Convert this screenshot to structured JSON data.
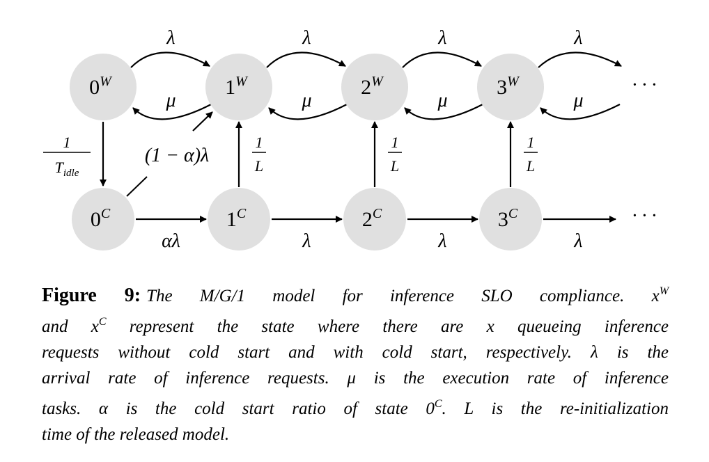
{
  "diagram": {
    "node_fill": "#e0e0e0",
    "top_nodes": [
      {
        "base": "0",
        "sup": "W"
      },
      {
        "base": "1",
        "sup": "W"
      },
      {
        "base": "2",
        "sup": "W"
      },
      {
        "base": "3",
        "sup": "W"
      }
    ],
    "bottom_nodes": [
      {
        "base": "0",
        "sup": "C"
      },
      {
        "base": "1",
        "sup": "C"
      },
      {
        "base": "2",
        "sup": "C"
      },
      {
        "base": "3",
        "sup": "C"
      }
    ],
    "arrival_label": "λ",
    "service_label": "μ",
    "idle_num": "1",
    "idle_den": "T",
    "idle_den_sub": "idle",
    "reinit_num": "1",
    "reinit_den": "L",
    "warm_label": "(1 − α)λ",
    "cold_label": "αλ",
    "ellipsis": "· · ·"
  },
  "caption": {
    "label": "Figure 9:",
    "lines": [
      [
        {
          "t": "The M/G/1 model for inference SLO compliance. "
        },
        {
          "t": "x",
          "m": true
        },
        {
          "t": "W",
          "sup": true
        }
      ],
      [
        {
          "t": "and "
        },
        {
          "t": "x",
          "m": true
        },
        {
          "t": "C",
          "sup": true
        },
        {
          "t": " represent the state where there are "
        },
        {
          "t": "x",
          "m": true
        },
        {
          "t": " queueing inference"
        }
      ],
      [
        {
          "t": "requests without cold start and with cold start, respectively. "
        },
        {
          "t": "λ",
          "m": true
        },
        {
          "t": " is the"
        }
      ],
      [
        {
          "t": "arrival rate of inference requests. "
        },
        {
          "t": "μ",
          "m": true
        },
        {
          "t": " is the execution rate of inference"
        }
      ],
      [
        {
          "t": "tasks. "
        },
        {
          "t": "α",
          "m": true
        },
        {
          "t": " is the cold start ratio of state 0"
        },
        {
          "t": "C",
          "sup": true
        },
        {
          "t": ". "
        },
        {
          "t": "L",
          "m": true
        },
        {
          "t": " is the re-initialization"
        }
      ],
      [
        {
          "t": "time of the released model."
        }
      ]
    ]
  }
}
